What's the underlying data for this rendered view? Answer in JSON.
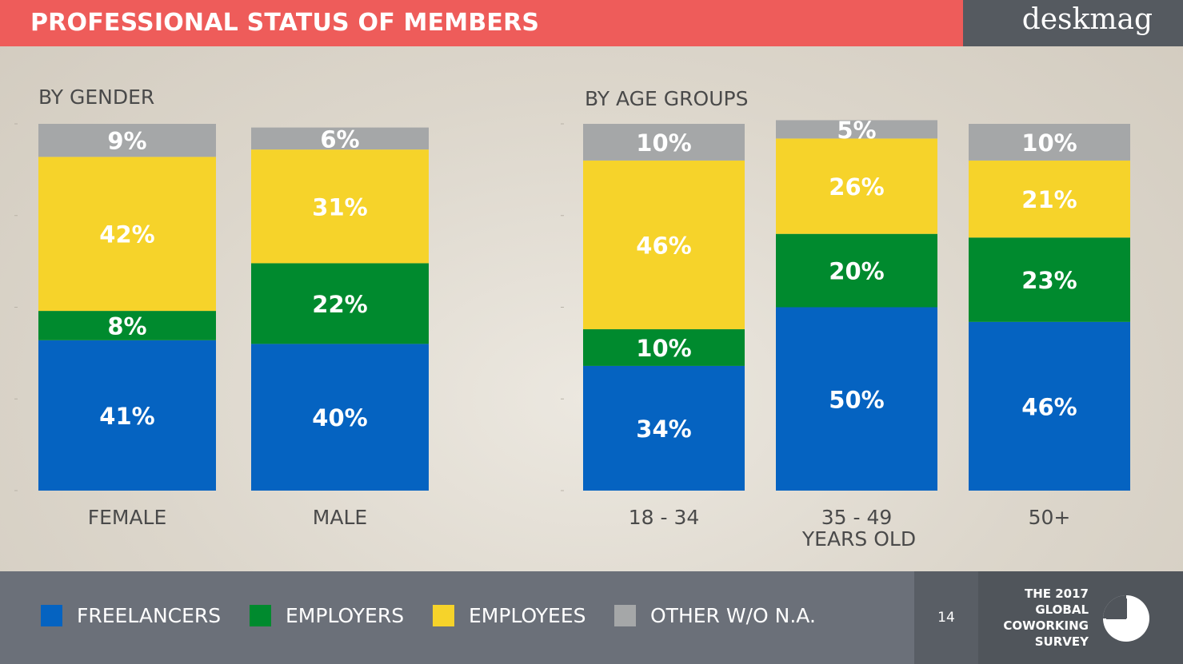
{
  "header": {
    "title": "PROFESSIONAL STATUS OF MEMBERS",
    "brand": "deskmag"
  },
  "colors": {
    "freelancers": "#0563c1",
    "employers": "#008a2e",
    "employees": "#f6d32a",
    "other": "#a5a7a8"
  },
  "chart_data": [
    {
      "type": "bar",
      "stacked": true,
      "title": "BY GENDER",
      "categories": [
        "FEMALE",
        "MALE"
      ],
      "series": [
        {
          "name": "FREELANCERS",
          "values": [
            41,
            40
          ]
        },
        {
          "name": "EMPLOYERS",
          "values": [
            8,
            22
          ]
        },
        {
          "name": "EMPLOYEES",
          "values": [
            42,
            31
          ]
        },
        {
          "name": "OTHER W/O N.A.",
          "values": [
            9,
            6
          ]
        }
      ],
      "ylim": [
        0,
        100
      ],
      "grid": false
    },
    {
      "type": "bar",
      "stacked": true,
      "title": "BY AGE GROUPS",
      "categories": [
        "18 - 34",
        "35 - 49",
        "50+"
      ],
      "category_sublabels": [
        "",
        "YEARS OLD",
        ""
      ],
      "series": [
        {
          "name": "FREELANCERS",
          "values": [
            34,
            50,
            46
          ]
        },
        {
          "name": "EMPLOYERS",
          "values": [
            10,
            20,
            23
          ]
        },
        {
          "name": "EMPLOYEES",
          "values": [
            46,
            26,
            21
          ]
        },
        {
          "name": "OTHER W/O N.A.",
          "values": [
            10,
            5,
            10
          ]
        }
      ],
      "ylim": [
        0,
        100
      ],
      "grid": false
    }
  ],
  "legend": {
    "placement": "bottom",
    "items": [
      {
        "label": "FREELANCERS",
        "color": "#0563c1"
      },
      {
        "label": "EMPLOYERS",
        "color": "#008a2e"
      },
      {
        "label": "EMPLOYEES",
        "color": "#f6d32a"
      },
      {
        "label": "OTHER W/O N.A.",
        "color": "#a5a7a8"
      }
    ]
  },
  "footer": {
    "page_number": "14",
    "survey_lines": [
      "THE 2017",
      "GLOBAL",
      "COWORKING",
      "SURVEY"
    ],
    "survey_icon": "pie-chart-icon"
  }
}
